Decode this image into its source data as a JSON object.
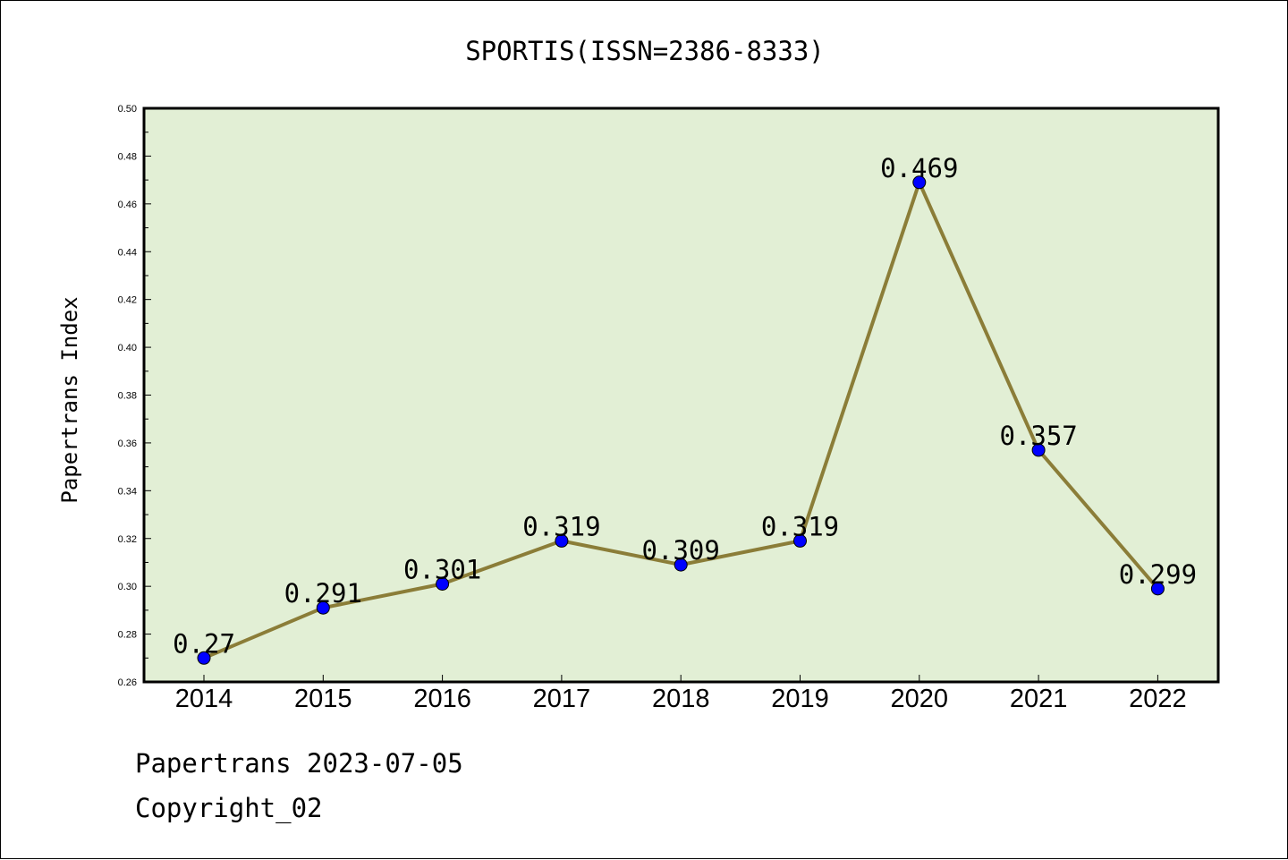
{
  "chart_data": {
    "type": "line",
    "title": "SPORTIS(ISSN=2386-8333)",
    "xlabel": "",
    "ylabel": "Papertrans Index",
    "categories": [
      "2014",
      "2015",
      "2016",
      "2017",
      "2018",
      "2019",
      "2020",
      "2021",
      "2022"
    ],
    "series": [
      {
        "values": [
          0.27,
          0.291,
          0.301,
          0.319,
          0.309,
          0.319,
          0.469,
          0.357,
          0.299
        ],
        "labels": [
          "0.27",
          "0.291",
          "0.301",
          "0.319",
          "0.309",
          "0.319",
          "0.469",
          "0.357",
          "0.299"
        ]
      }
    ],
    "ylim": [
      0.26,
      0.5
    ],
    "yticks": [
      "0.26",
      "0.28",
      "0.30",
      "0.32",
      "0.34",
      "0.36",
      "0.38",
      "0.40",
      "0.42",
      "0.44",
      "0.46",
      "0.48",
      "0.50"
    ],
    "grid": false,
    "legend": "none",
    "colors": {
      "plot_background": "#e2efd5",
      "line": "#8b7d38",
      "marker": "#0000ff"
    }
  },
  "footer": {
    "source": "Papertrans 2023-07-05",
    "copyright": "Copyright_02"
  }
}
